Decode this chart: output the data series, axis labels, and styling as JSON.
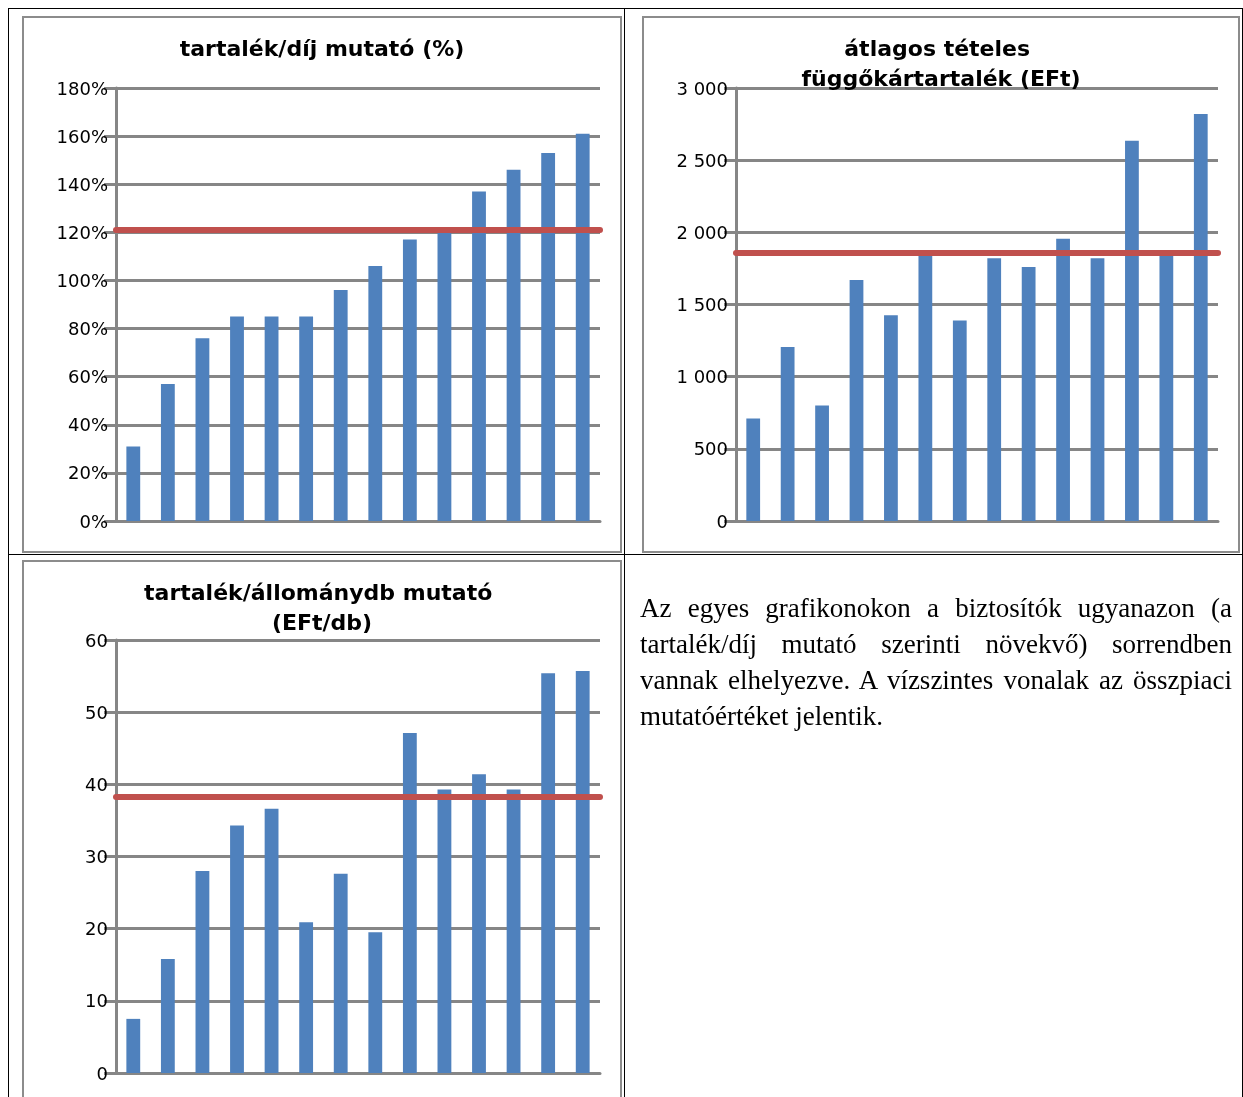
{
  "chart_data": [
    {
      "type": "bar",
      "title": "tartalék/díj mutató (%)",
      "categories": [
        null,
        null,
        null,
        null,
        null,
        null,
        null,
        null,
        null,
        null,
        null,
        null,
        null,
        null
      ],
      "values": [
        31,
        57,
        76,
        85,
        85,
        85,
        96,
        106,
        117,
        120,
        137,
        146,
        153,
        161
      ],
      "color": "#4f81bd",
      "ylim": [
        0,
        180
      ],
      "yticks": [
        {
          "value": 0,
          "label": "0%"
        },
        {
          "value": 20,
          "label": "20%"
        },
        {
          "value": 40,
          "label": "40%"
        },
        {
          "value": 60,
          "label": "60%"
        },
        {
          "value": 80,
          "label": "80%"
        },
        {
          "value": 100,
          "label": "100%"
        },
        {
          "value": 120,
          "label": "120%"
        },
        {
          "value": 140,
          "label": "140%"
        },
        {
          "value": 160,
          "label": "160%"
        },
        {
          "value": 180,
          "label": "180%"
        }
      ],
      "grid": "y",
      "ref_lines": [
        {
          "axis": "y",
          "value": 121,
          "color": "#c0504d"
        }
      ]
    },
    {
      "type": "bar",
      "title": "átlagos tételes függőkártartalék (EFt)",
      "categories": [
        null,
        null,
        null,
        null,
        null,
        null,
        null,
        null,
        null,
        null,
        null,
        null,
        null,
        null
      ],
      "values": [
        710,
        1205,
        800,
        1670,
        1425,
        1850,
        1390,
        1820,
        1760,
        1955,
        1820,
        2635,
        1850,
        2820
      ],
      "color": "#4f81bd",
      "ylim": [
        0,
        3000
      ],
      "yticks": [
        0,
        500,
        {
          "value": 1000,
          "label": "1 000"
        },
        {
          "value": 1500,
          "label": "1 500"
        },
        {
          "value": 2000,
          "label": "2 000"
        },
        {
          "value": 2500,
          "label": "2 500"
        },
        {
          "value": 3000,
          "label": "3 000"
        }
      ],
      "grid": "y",
      "ref_lines": [
        {
          "axis": "y",
          "value": 1860,
          "color": "#c0504d"
        }
      ]
    },
    {
      "type": "bar",
      "title": "tartalék/állománydb mutató (EFt/db)",
      "categories": [
        null,
        null,
        null,
        null,
        null,
        null,
        null,
        null,
        null,
        null,
        null,
        null,
        null,
        null
      ],
      "values": [
        7.5,
        15.8,
        28,
        34.3,
        36.6,
        20.9,
        27.6,
        19.5,
        47.1,
        39.3,
        41.4,
        39.3,
        55.4,
        55.7
      ],
      "color": "#4f81bd",
      "ylim": [
        0,
        60
      ],
      "yticks": [
        0,
        10,
        20,
        30,
        40,
        50,
        60
      ],
      "grid": "y",
      "ref_lines": [
        {
          "axis": "y",
          "value": 38.3,
          "color": "#c0504d"
        }
      ]
    },
    {
      "type": "other",
      "annotations": [
        "Az egyes grafikonokon a biztosítók ugyanazon (a tartalék/díj mutató szerinti növekvő) sorrendben vannak elhelyezve. A vízszintes vonalak az összpiaci mutatóértéket jelentik."
      ]
    }
  ]
}
